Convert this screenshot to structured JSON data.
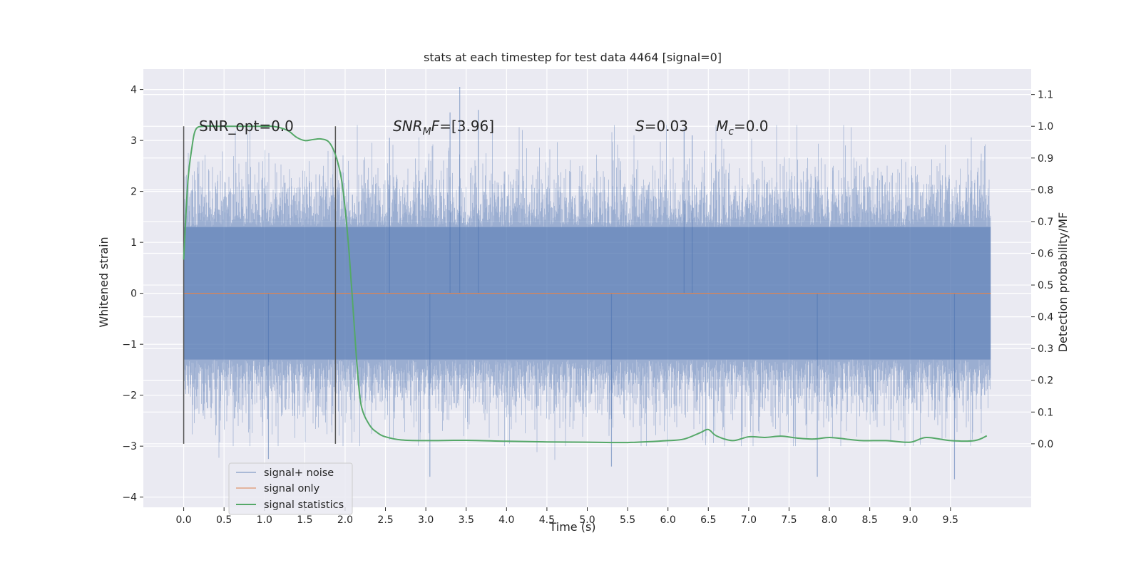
{
  "chart_data": {
    "type": "line",
    "title": "stats at each timestep for test data 4464 [signal=0]",
    "xlabel": "Time (s)",
    "ylabel_left": "Whitened strain",
    "ylabel_right": "Detection probability/MF",
    "xlim": [
      -0.5,
      10.5
    ],
    "ylim_left": [
      -4.2,
      4.4
    ],
    "ylim_right": [
      -0.2,
      1.18
    ],
    "x_ticks": [
      "0.0",
      "0.5",
      "1.0",
      "1.5",
      "2.0",
      "2.5",
      "3.0",
      "3.5",
      "4.0",
      "4.5",
      "5.0",
      "5.5",
      "6.0",
      "6.5",
      "7.0",
      "7.5",
      "8.0",
      "8.5",
      "9.0",
      "9.5"
    ],
    "y_left_ticks": [
      "4",
      "3",
      "2",
      "1",
      "0",
      "−1",
      "−2",
      "−3",
      "−4"
    ],
    "y_right_ticks": [
      "1.1",
      "1.0",
      "0.9",
      "0.8",
      "0.7",
      "0.6",
      "0.5",
      "0.4",
      "0.3",
      "0.2",
      "0.1",
      "0.0"
    ],
    "grid": true,
    "legend_position": "lower-left",
    "annotations": {
      "snr_opt": "SNR_opt=0.0",
      "snr_mf_name": "SNR",
      "snr_mf_sub": "M",
      "snr_mf_suffix": "F",
      "snr_mf_value": "=[3.96]",
      "s_name": "S",
      "s_value": "=0.03",
      "mc_name": "M",
      "mc_sub": "c",
      "mc_value": "=0.0"
    },
    "vertical_lines_x": [
      0.0,
      1.88
    ],
    "series": [
      {
        "name": "signal+ noise",
        "axis": "left",
        "color": "#4c72b0",
        "x_range": [
          0.0,
          10.0
        ],
        "core_amplitude": 1.3,
        "typical_peak_range": [
          -3.0,
          3.3
        ],
        "extreme_values": [
          [
            3.42,
            4.05
          ],
          [
            3.65,
            3.6
          ],
          [
            3.3,
            3.55
          ],
          [
            1.05,
            -3.25
          ],
          [
            5.3,
            -3.4
          ],
          [
            7.85,
            -3.6
          ],
          [
            9.55,
            -3.65
          ],
          [
            3.05,
            -3.6
          ],
          [
            6.2,
            3.25
          ],
          [
            6.3,
            3.1
          ],
          [
            2.55,
            3.05
          ]
        ]
      },
      {
        "name": "signal only",
        "axis": "left",
        "color": "#dd8452",
        "x": [
          0.0,
          10.0
        ],
        "y": [
          0.0,
          0.0
        ]
      },
      {
        "name": "signal statistics",
        "axis": "right",
        "color": "#55a868",
        "x": [
          0.0,
          0.05,
          0.1,
          0.15,
          0.25,
          0.4,
          0.6,
          0.8,
          1.0,
          1.1,
          1.2,
          1.3,
          1.4,
          1.5,
          1.6,
          1.7,
          1.8,
          1.88,
          1.95,
          2.0,
          2.05,
          2.1,
          2.15,
          2.2,
          2.3,
          2.4,
          2.5,
          2.7,
          3.0,
          3.5,
          4.0,
          4.5,
          5.0,
          5.5,
          6.0,
          6.2,
          6.4,
          6.5,
          6.6,
          6.8,
          7.0,
          7.2,
          7.4,
          7.6,
          7.8,
          8.0,
          8.2,
          8.4,
          8.7,
          9.0,
          9.2,
          9.5,
          9.8,
          9.95
        ],
        "y": [
          0.58,
          0.82,
          0.93,
          0.99,
          1.0,
          1.0,
          1.0,
          1.0,
          1.0,
          1.0,
          0.995,
          0.985,
          0.965,
          0.955,
          0.958,
          0.96,
          0.95,
          0.91,
          0.84,
          0.74,
          0.6,
          0.42,
          0.24,
          0.12,
          0.06,
          0.035,
          0.022,
          0.012,
          0.01,
          0.011,
          0.008,
          0.006,
          0.005,
          0.004,
          0.01,
          0.015,
          0.035,
          0.045,
          0.025,
          0.01,
          0.022,
          0.02,
          0.024,
          0.018,
          0.015,
          0.02,
          0.015,
          0.01,
          0.01,
          0.005,
          0.02,
          0.01,
          0.01,
          0.025
        ]
      }
    ]
  }
}
